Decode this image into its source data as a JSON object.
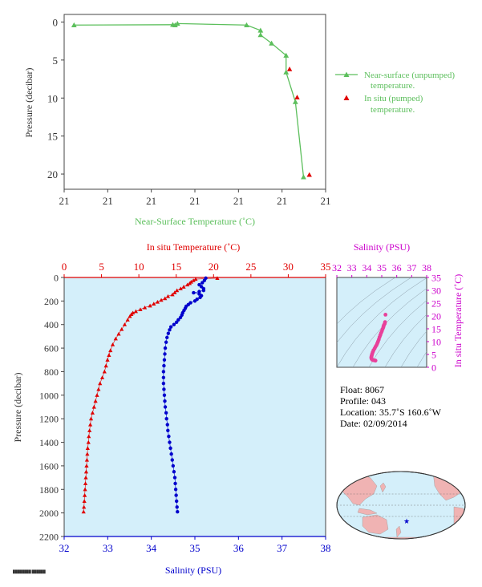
{
  "colors": {
    "green": "#5cbf5c",
    "red": "#e00000",
    "blue": "#0000cc",
    "magenta": "#cc00cc",
    "pink": "#e8409a",
    "axis_dark": "#333333",
    "plot_bg": "#d4effa",
    "land": "#f0b3b3",
    "ocean": "#d4effa"
  },
  "chart_data": [
    {
      "type": "line",
      "title": "",
      "xlabel": "Near-Surface Temperature (˚C)",
      "ylabel": "Pressure (decibar)",
      "xlim": [
        20.55,
        21.0
      ],
      "ylim": [
        22,
        -1
      ],
      "x_tick_labels": [
        "21",
        "21",
        "21",
        "21",
        "21",
        "21",
        "21"
      ],
      "y_ticks": [
        0,
        5,
        10,
        15,
        20
      ],
      "series": [
        {
          "name": "Near-surface (unpumped) temperature.",
          "marker": "triangle",
          "points": [
            [
              20.567,
              0.4
            ],
            [
              20.737,
              0.35
            ],
            [
              20.741,
              0.4
            ],
            [
              20.745,
              0.2
            ],
            [
              20.864,
              0.4
            ],
            [
              20.888,
              1.1
            ],
            [
              20.888,
              1.7
            ],
            [
              20.907,
              2.8
            ],
            [
              20.932,
              4.4
            ],
            [
              20.932,
              6.6
            ],
            [
              20.948,
              10.5
            ],
            [
              20.962,
              20.4
            ]
          ]
        },
        {
          "name": "In situ (pumped) temperature.",
          "marker": "triangle",
          "points": [
            [
              20.938,
              6.2
            ],
            [
              20.951,
              9.9
            ],
            [
              20.972,
              20.1
            ]
          ]
        }
      ]
    },
    {
      "type": "line",
      "title": "",
      "xlabel_top": "In situ Temperature (˚C)",
      "xlabel_bottom": "Salinity (PSU)",
      "ylabel": "Pressure (decibar)",
      "temp_ticks": [
        0,
        5,
        10,
        15,
        20,
        25,
        30,
        35
      ],
      "sal_ticks": [
        32,
        33,
        34,
        35,
        36,
        37,
        38
      ],
      "y_ticks": [
        0,
        200,
        400,
        600,
        800,
        1000,
        1200,
        1400,
        1600,
        1800,
        2000,
        2200
      ],
      "series": [
        {
          "name": "In situ Temperature",
          "axis": "temperature",
          "points": [
            [
              20.5,
              6
            ],
            [
              17.6,
              14
            ],
            [
              17.3,
              25
            ],
            [
              17.0,
              38
            ],
            [
              16.8,
              50
            ],
            [
              16.5,
              62
            ],
            [
              16.0,
              80
            ],
            [
              15.6,
              95
            ],
            [
              15.1,
              110
            ],
            [
              14.8,
              128
            ],
            [
              14.5,
              145
            ],
            [
              13.9,
              160
            ],
            [
              13.5,
              178
            ],
            [
              13.0,
              192
            ],
            [
              12.5,
              208
            ],
            [
              12.0,
              224
            ],
            [
              11.5,
              240
            ],
            [
              10.8,
              256
            ],
            [
              10.2,
              272
            ],
            [
              9.6,
              288
            ],
            [
              9.2,
              300
            ],
            [
              9.0,
              313
            ],
            [
              8.8,
              330
            ],
            [
              8.5,
              360
            ],
            [
              8.1,
              400
            ],
            [
              7.7,
              440
            ],
            [
              7.3,
              480
            ],
            [
              6.9,
              520
            ],
            [
              6.5,
              570
            ],
            [
              6.2,
              620
            ],
            [
              6.0,
              660
            ],
            [
              5.8,
              700
            ],
            [
              5.6,
              750
            ],
            [
              5.4,
              800
            ],
            [
              5.1,
              850
            ],
            [
              4.8,
              900
            ],
            [
              4.6,
              950
            ],
            [
              4.4,
              1000
            ],
            [
              4.2,
              1050
            ],
            [
              4.0,
              1100
            ],
            [
              3.8,
              1150
            ],
            [
              3.6,
              1200
            ],
            [
              3.5,
              1250
            ],
            [
              3.4,
              1300
            ],
            [
              3.3,
              1350
            ],
            [
              3.25,
              1400
            ],
            [
              3.15,
              1450
            ],
            [
              3.1,
              1500
            ],
            [
              3.05,
              1550
            ],
            [
              3.0,
              1600
            ],
            [
              2.95,
              1650
            ],
            [
              2.9,
              1700
            ],
            [
              2.85,
              1750
            ],
            [
              2.8,
              1800
            ],
            [
              2.75,
              1850
            ],
            [
              2.7,
              1900
            ],
            [
              2.65,
              1950
            ],
            [
              2.6,
              1990
            ]
          ]
        },
        {
          "name": "Salinity",
          "axis": "salinity",
          "points": [
            [
              35.25,
              6
            ],
            [
              35.22,
              25
            ],
            [
              35.17,
              45
            ],
            [
              35.1,
              62
            ],
            [
              35.15,
              78
            ],
            [
              35.2,
              95
            ],
            [
              35.2,
              110
            ],
            [
              35.1,
              120
            ],
            [
              34.97,
              130
            ],
            [
              35.1,
              140
            ],
            [
              35.15,
              155
            ],
            [
              35.12,
              170
            ],
            [
              35.05,
              185
            ],
            [
              35.0,
              200
            ],
            [
              34.9,
              215
            ],
            [
              34.85,
              230
            ],
            [
              34.8,
              245
            ],
            [
              34.78,
              262
            ],
            [
              34.75,
              280
            ],
            [
              34.72,
              300
            ],
            [
              34.7,
              320
            ],
            [
              34.67,
              340
            ],
            [
              34.62,
              360
            ],
            [
              34.58,
              380
            ],
            [
              34.52,
              400
            ],
            [
              34.45,
              420
            ],
            [
              34.42,
              445
            ],
            [
              34.39,
              475
            ],
            [
              34.36,
              510
            ],
            [
              34.34,
              550
            ],
            [
              34.32,
              600
            ],
            [
              34.31,
              650
            ],
            [
              34.3,
              700
            ],
            [
              34.29,
              750
            ],
            [
              34.28,
              800
            ],
            [
              34.28,
              850
            ],
            [
              34.28,
              900
            ],
            [
              34.29,
              950
            ],
            [
              34.3,
              1000
            ],
            [
              34.31,
              1050
            ],
            [
              34.32,
              1100
            ],
            [
              34.34,
              1150
            ],
            [
              34.35,
              1200
            ],
            [
              34.37,
              1250
            ],
            [
              34.38,
              1300
            ],
            [
              34.4,
              1350
            ],
            [
              34.42,
              1400
            ],
            [
              34.44,
              1450
            ],
            [
              34.46,
              1500
            ],
            [
              34.48,
              1550
            ],
            [
              34.5,
              1600
            ],
            [
              34.52,
              1650
            ],
            [
              34.54,
              1700
            ],
            [
              34.55,
              1750
            ],
            [
              34.56,
              1800
            ],
            [
              34.57,
              1850
            ],
            [
              34.58,
              1900
            ],
            [
              34.59,
              1950
            ],
            [
              34.6,
              1990
            ]
          ]
        }
      ]
    },
    {
      "type": "scatter",
      "title": "",
      "xlabel": "Salinity (PSU)",
      "ylabel": "In situ Temperature (˚C)",
      "x_ticks": [
        32,
        33,
        34,
        35,
        36,
        37,
        38
      ],
      "y_ticks": [
        0,
        5,
        10,
        15,
        20,
        25,
        30,
        35
      ],
      "points": [
        [
          35.25,
          20.5
        ],
        [
          35.22,
          17.6
        ],
        [
          35.2,
          17.0
        ],
        [
          35.15,
          16.5
        ],
        [
          35.12,
          16.0
        ],
        [
          35.1,
          15.5
        ],
        [
          35.05,
          14.8
        ],
        [
          35.0,
          14.0
        ],
        [
          34.95,
          13.3
        ],
        [
          34.9,
          12.5
        ],
        [
          34.85,
          11.7
        ],
        [
          34.8,
          10.8
        ],
        [
          34.75,
          10.0
        ],
        [
          34.7,
          9.3
        ],
        [
          34.65,
          8.6
        ],
        [
          34.58,
          8.0
        ],
        [
          34.52,
          7.3
        ],
        [
          34.45,
          6.6
        ],
        [
          34.4,
          5.9
        ],
        [
          34.36,
          5.2
        ],
        [
          34.33,
          4.6
        ],
        [
          34.31,
          4.1
        ],
        [
          34.3,
          3.7
        ],
        [
          34.32,
          3.3
        ],
        [
          34.36,
          3.0
        ],
        [
          34.42,
          2.8
        ],
        [
          34.5,
          2.7
        ],
        [
          34.58,
          2.6
        ]
      ]
    }
  ],
  "legend": {
    "series1": "Near-surface (unpumped)",
    "series1b": "temperature.",
    "series2": "In situ (pumped)",
    "series2b": "temperature."
  },
  "info": {
    "float": "Float:  8067",
    "profile": "Profile:  043",
    "location": "Location:  35.7˚S  160.6˚W",
    "date": "Date:  02/09/2014"
  },
  "map": {
    "marker_lon": -160.6,
    "marker_lat": -35.7
  }
}
